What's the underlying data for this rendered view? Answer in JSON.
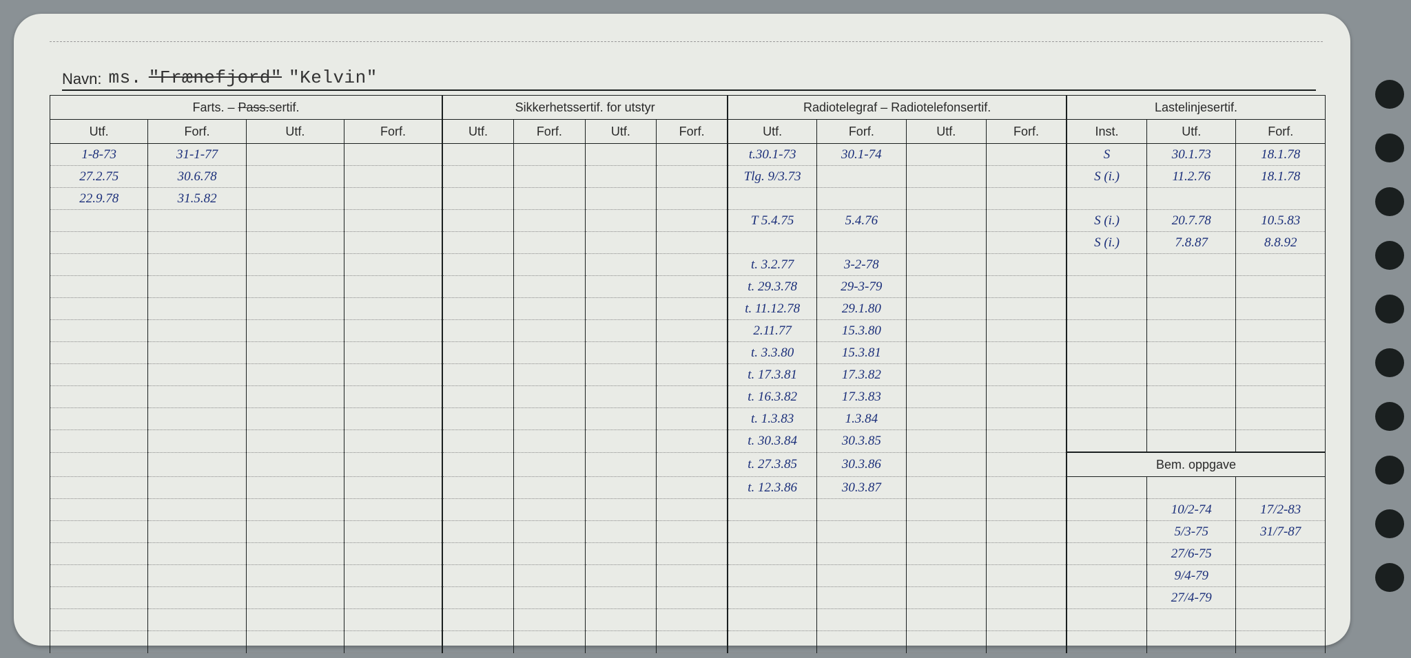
{
  "navn_label": "Navn:",
  "navn_prefix": "ms.",
  "navn_struck": "\"Frænefjord\"",
  "navn_current": "\"Kelvin\"",
  "sections": {
    "farts": {
      "title": "Farts. – ",
      "pass": "Pass.",
      "suffix": "sertif.",
      "cols": [
        "Utf.",
        "Forf.",
        "Utf.",
        "Forf."
      ]
    },
    "sikkerhet": {
      "title": "Sikkerhetssertif. for utstyr",
      "cols": [
        "Utf.",
        "Forf.",
        "Utf.",
        "Forf."
      ]
    },
    "radio": {
      "title": "Radiotelegraf – Radiotelefonsertif.",
      "cols": [
        "Utf.",
        "Forf.",
        "Utf.",
        "Forf."
      ]
    },
    "laste": {
      "title": "Lastelinjesertif.",
      "cols": [
        "Inst.",
        "Utf.",
        "Forf."
      ]
    }
  },
  "bem_label": "Bem. oppgave",
  "rows": [
    {
      "f_utf": "1-8-73",
      "f_forf": "31-1-77",
      "r_utf": "t.30.1-73",
      "r_forf": "30.1-74",
      "l_inst": "S",
      "l_utf": "30.1.73",
      "l_forf": "18.1.78"
    },
    {
      "f_utf": "27.2.75",
      "f_forf": "30.6.78",
      "r_utf": "Tlg. 9/3.73",
      "r_forf": "",
      "l_inst": "S (i.)",
      "l_utf": "11.2.76",
      "l_forf": "18.1.78"
    },
    {
      "f_utf": "22.9.78",
      "f_forf": "31.5.82",
      "r_utf": "",
      "r_forf": "",
      "l_inst": "",
      "l_utf": "",
      "l_forf": ""
    },
    {
      "r_utf": "T 5.4.75",
      "r_forf": "5.4.76",
      "l_inst": "S (i.)",
      "l_utf": "20.7.78",
      "l_forf": "10.5.83"
    },
    {
      "r_utf": "",
      "r_forf": "",
      "l_inst": "S (i.)",
      "l_utf": "7.8.87",
      "l_forf": "8.8.92"
    },
    {
      "r_utf": "t. 3.2.77",
      "r_forf": "3-2-78"
    },
    {
      "r_utf": "t. 29.3.78",
      "r_forf": "29-3-79"
    },
    {
      "r_utf": "t. 11.12.78",
      "r_forf": "29.1.80"
    },
    {
      "r_utf": "2.11.77",
      "r_forf": "15.3.80"
    },
    {
      "r_utf": "t. 3.3.80",
      "r_forf": "15.3.81"
    },
    {
      "r_utf": "t. 17.3.81",
      "r_forf": "17.3.82"
    },
    {
      "r_utf": "t. 16.3.82",
      "r_forf": "17.3.83"
    },
    {
      "r_utf": "t. 1.3.83",
      "r_forf": "1.3.84"
    },
    {
      "r_utf": "t. 30.3.84",
      "r_forf": "30.3.85"
    },
    {
      "r_utf": "t. 27.3.85",
      "r_forf": "30.3.86"
    },
    {
      "r_utf": "t. 12.3.86",
      "r_forf": "30.3.87"
    }
  ],
  "bem_rows": [
    {
      "a": "10/2-74",
      "b": "17/2-83"
    },
    {
      "a": "5/3-75",
      "b": "31/7-87"
    },
    {
      "a": "27/6-75",
      "b": ""
    },
    {
      "a": "9/4-79",
      "b": ""
    },
    {
      "a": "27/4-79",
      "b": ""
    }
  ],
  "colors": {
    "paper": "#e9ebe6",
    "ink": "#1a1f1f",
    "hand": "#1b2f7a",
    "bg": "#8a9195"
  }
}
